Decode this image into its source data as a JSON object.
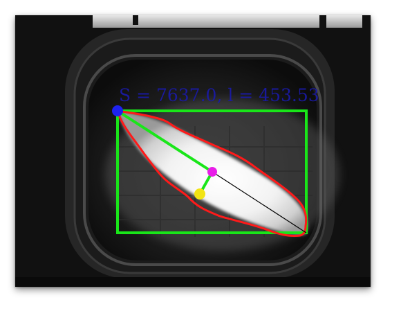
{
  "measurement": {
    "label": "S = 7637.0, l = 453.53"
  },
  "colors": {
    "bounding_box": "#19e619",
    "contour": "#ff1a1a",
    "length_line": "#19e619",
    "endpoint_marker": "#1e22f0",
    "centroid_marker": "#e81ee8",
    "projection_marker": "#f2e414",
    "axis_line": "#000000",
    "label_text": "#1a1aa8"
  },
  "icons": {
    "endpoint": "endpoint-marker-icon",
    "centroid": "centroid-marker-icon",
    "projection": "projection-marker-icon"
  }
}
